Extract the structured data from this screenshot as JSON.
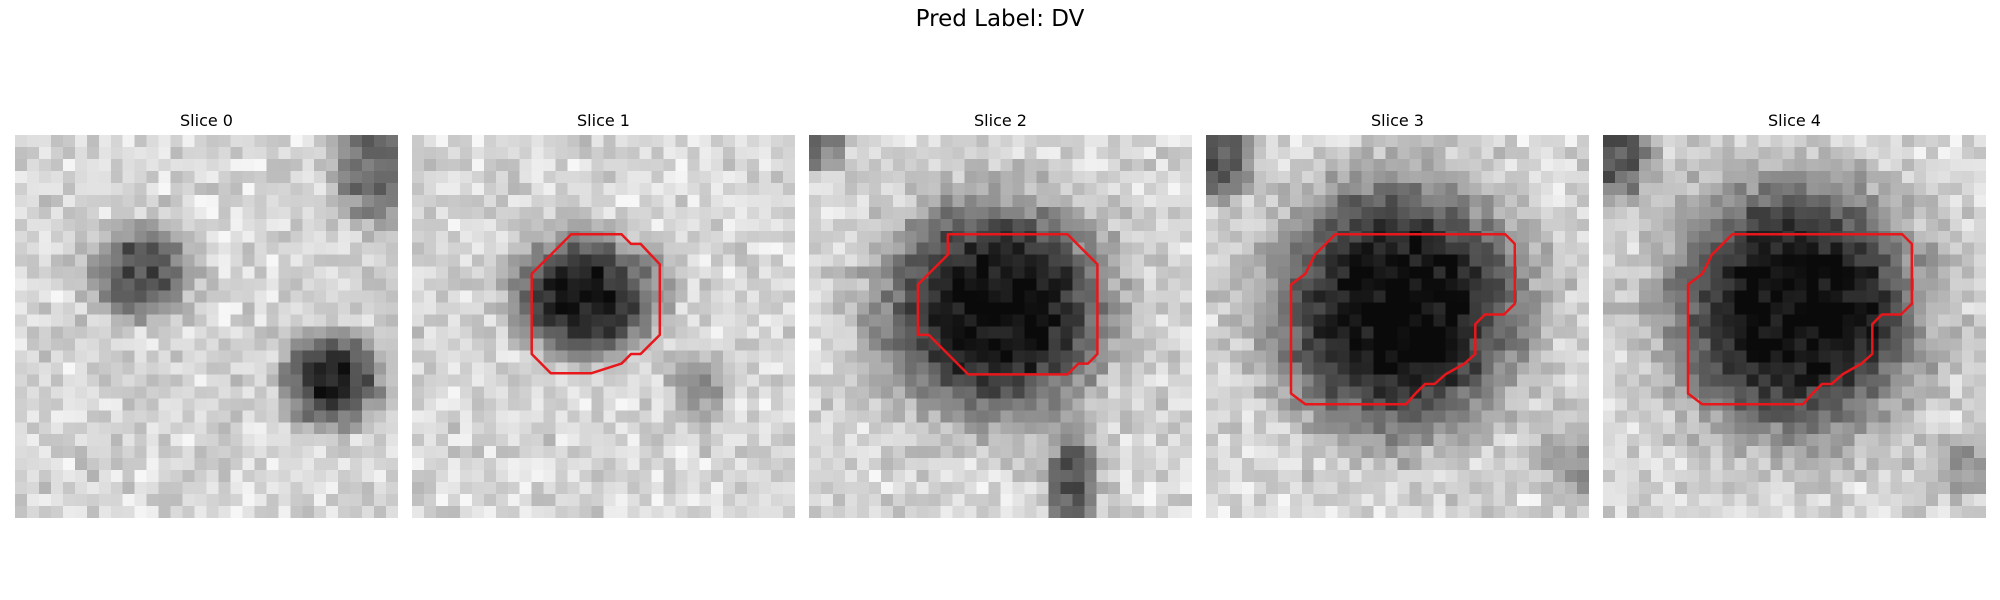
{
  "figure": {
    "title": "Pred Label: DV"
  },
  "panels": [
    {
      "title": "Slice 0",
      "has_contour": false
    },
    {
      "title": "Slice 1",
      "has_contour": true
    },
    {
      "title": "Slice 2",
      "has_contour": true
    },
    {
      "title": "Slice 3",
      "has_contour": true
    },
    {
      "title": "Slice 4",
      "has_contour": true
    }
  ],
  "colors": {
    "contour": "#e8171b",
    "background": "#ffffff",
    "colormap": "grayscale"
  }
}
